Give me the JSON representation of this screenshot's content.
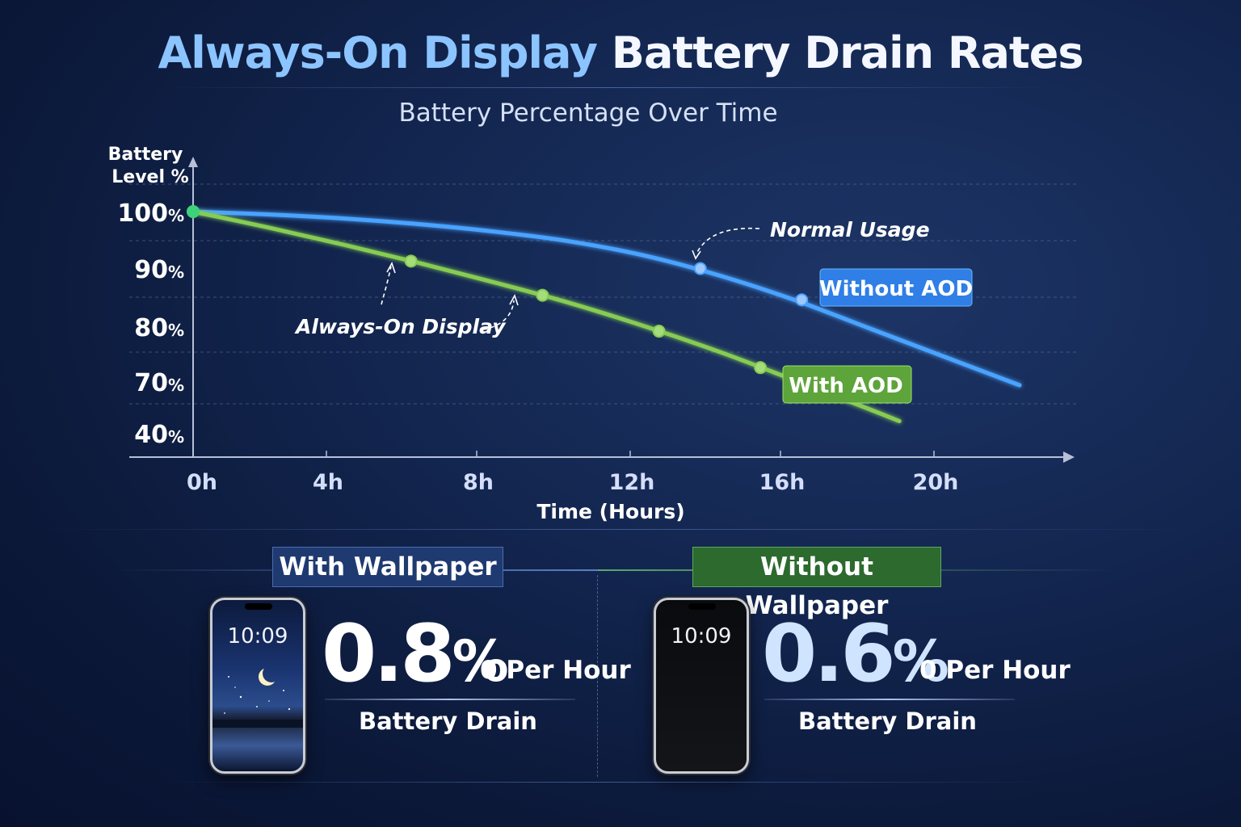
{
  "title_part1": "Always-On Display",
  "title_part2": "Battery Drain Rates",
  "chart_data": {
    "type": "line",
    "subtitle": "Battery Percentage Over Time",
    "ylabel_line1": "Battery",
    "ylabel_line2": "Level %",
    "xlabel": "Time (Hours)",
    "x_ticks": [
      "0h",
      "4h",
      "8h",
      "12h",
      "16h",
      "20h"
    ],
    "y_ticks": [
      {
        "value": "100",
        "unit": "%"
      },
      {
        "value": "90",
        "unit": "%"
      },
      {
        "value": "80",
        "unit": "%"
      },
      {
        "value": "70",
        "unit": "%"
      },
      {
        "value": "40",
        "unit": "%"
      }
    ],
    "series": [
      {
        "name": "Without AOD",
        "color": "#4aa3ff",
        "x": [
          0,
          2,
          4,
          6,
          8,
          10,
          12,
          14,
          16,
          18,
          20,
          22
        ],
        "y": [
          100,
          99.5,
          98.8,
          97.8,
          96.5,
          94.8,
          92.3,
          88.8,
          84.5,
          79.5,
          74.5,
          69.5
        ],
        "markers": [
          {
            "x": 13.5,
            "y": 90
          },
          {
            "x": 16.2,
            "y": 84.5
          }
        ]
      },
      {
        "name": "With AOD",
        "color": "#86cc52",
        "x": [
          0,
          2,
          4,
          6,
          8,
          10,
          12,
          14,
          16,
          18,
          18.8
        ],
        "y": [
          100,
          97.2,
          94.2,
          91,
          87.6,
          84,
          79.9,
          75.4,
          70.4,
          65.3,
          63.2
        ],
        "markers": [
          {
            "x": 0,
            "y": 100
          },
          {
            "x": 5.8,
            "y": 91.3
          },
          {
            "x": 9.3,
            "y": 85.3
          },
          {
            "x": 12.4,
            "y": 79
          },
          {
            "x": 15.1,
            "y": 72.6
          }
        ]
      }
    ],
    "annotations": {
      "normal": "Normal Usage",
      "aod": "Always-On Display"
    }
  },
  "panels": {
    "left": {
      "banner": "With Wallpaper",
      "clock": "10:09",
      "value": "0.8",
      "unit": "%",
      "per": "0 Per Hour",
      "caption": "Battery Drain"
    },
    "right": {
      "banner": "Without Wallpaper",
      "clock": "10:09",
      "value": "0.6",
      "unit": "%",
      "per": "0 Per Hour",
      "caption": "Battery Drain"
    }
  }
}
